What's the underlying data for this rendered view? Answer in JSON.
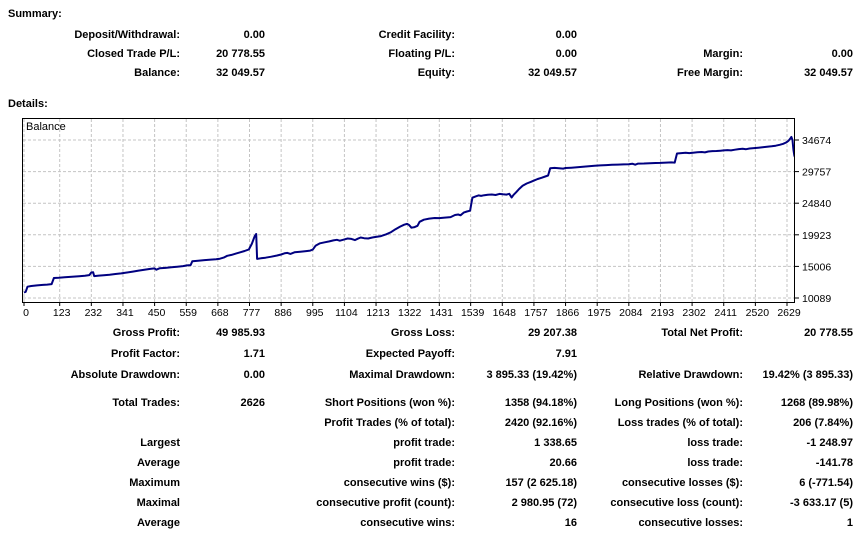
{
  "summary": {
    "title": "Summary:",
    "rows": [
      [
        "Deposit/Withdrawal:",
        "0.00",
        "Credit Facility:",
        "0.00",
        "",
        ""
      ],
      [
        "Closed Trade P/L:",
        "20 778.55",
        "Floating P/L:",
        "0.00",
        "Margin:",
        "0.00"
      ],
      [
        "Balance:",
        "32 049.57",
        "Equity:",
        "32 049.57",
        "Free Margin:",
        "32 049.57"
      ]
    ]
  },
  "details": {
    "title": "Details:",
    "group1": [
      [
        "Gross Profit:",
        "49 985.93",
        "Gross Loss:",
        "29 207.38",
        "Total Net Profit:",
        "20 778.55"
      ],
      [
        "Profit Factor:",
        "1.71",
        "Expected Payoff:",
        "7.91",
        "",
        ""
      ],
      [
        "Absolute Drawdown:",
        "0.00",
        "Maximal Drawdown:",
        "3 895.33 (19.42%)",
        "Relative Drawdown:",
        "19.42% (3 895.33)"
      ]
    ],
    "group2": [
      [
        "Total Trades:",
        "2626",
        "Short Positions (won %):",
        "1358 (94.18%)",
        "Long Positions (won %):",
        "1268 (89.98%)"
      ],
      [
        "",
        "",
        "Profit Trades (% of total):",
        "2420 (92.16%)",
        "Loss trades (% of total):",
        "206 (7.84%)"
      ],
      [
        "Largest",
        "",
        "profit trade:",
        "1 338.65",
        "loss trade:",
        "-1 248.97"
      ],
      [
        "Average",
        "",
        "profit trade:",
        "20.66",
        "loss trade:",
        "-141.78"
      ],
      [
        "Maximum",
        "",
        "consecutive wins ($):",
        "157 (2 625.18)",
        "consecutive losses ($):",
        "6 (-771.54)"
      ],
      [
        "Maximal",
        "",
        "consecutive profit (count):",
        "2 980.95 (72)",
        "consecutive loss (count):",
        "-3 633.17 (5)"
      ],
      [
        "Average",
        "",
        "consecutive wins:",
        "16",
        "consecutive losses:",
        "1"
      ]
    ]
  },
  "chart_data": {
    "type": "line",
    "title": "Balance",
    "legend_position": "top-left-inside",
    "grid": "dashed",
    "line_color": "#000080",
    "grid_color": "#c4c4c4",
    "x_ticks": [
      0,
      123,
      232,
      341,
      450,
      559,
      668,
      777,
      886,
      995,
      1104,
      1213,
      1322,
      1431,
      1539,
      1648,
      1757,
      1866,
      1975,
      2084,
      2193,
      2302,
      2411,
      2520,
      2629
    ],
    "y_ticks": [
      10089,
      15006,
      19923,
      24840,
      29757,
      34674
    ],
    "x_range": [
      0,
      2656
    ],
    "y_range": [
      10089,
      34674
    ],
    "series": [
      {
        "name": "Balance",
        "points": [
          [
            0,
            10950
          ],
          [
            6,
            11050
          ],
          [
            12,
            11850
          ],
          [
            25,
            11950
          ],
          [
            45,
            12050
          ],
          [
            65,
            12120
          ],
          [
            80,
            12180
          ],
          [
            95,
            12250
          ],
          [
            103,
            13200
          ],
          [
            120,
            13250
          ],
          [
            140,
            13320
          ],
          [
            165,
            13400
          ],
          [
            190,
            13480
          ],
          [
            210,
            13550
          ],
          [
            225,
            13650
          ],
          [
            232,
            14050
          ],
          [
            238,
            14100
          ],
          [
            242,
            13500
          ],
          [
            258,
            13570
          ],
          [
            275,
            13640
          ],
          [
            295,
            13720
          ],
          [
            315,
            13820
          ],
          [
            335,
            13920
          ],
          [
            355,
            14050
          ],
          [
            375,
            14200
          ],
          [
            395,
            14350
          ],
          [
            415,
            14480
          ],
          [
            435,
            14620
          ],
          [
            450,
            14700
          ],
          [
            456,
            14500
          ],
          [
            468,
            14720
          ],
          [
            488,
            14780
          ],
          [
            508,
            14870
          ],
          [
            528,
            14960
          ],
          [
            548,
            15060
          ],
          [
            562,
            15160
          ],
          [
            574,
            15210
          ],
          [
            580,
            15800
          ],
          [
            600,
            15900
          ],
          [
            622,
            15980
          ],
          [
            644,
            16060
          ],
          [
            662,
            16120
          ],
          [
            675,
            16200
          ],
          [
            688,
            16380
          ],
          [
            700,
            16650
          ],
          [
            715,
            16800
          ],
          [
            730,
            17000
          ],
          [
            745,
            17200
          ],
          [
            760,
            17400
          ],
          [
            775,
            17650
          ],
          [
            785,
            18500
          ],
          [
            795,
            19700
          ],
          [
            800,
            20050
          ],
          [
            803,
            16170
          ],
          [
            816,
            16260
          ],
          [
            832,
            16360
          ],
          [
            852,
            16520
          ],
          [
            872,
            16700
          ],
          [
            886,
            16850
          ],
          [
            898,
            17050
          ],
          [
            908,
            17100
          ],
          [
            918,
            16950
          ],
          [
            932,
            17200
          ],
          [
            952,
            17290
          ],
          [
            972,
            17380
          ],
          [
            986,
            17470
          ],
          [
            995,
            17620
          ],
          [
            1005,
            18250
          ],
          [
            1020,
            18600
          ],
          [
            1036,
            18760
          ],
          [
            1052,
            18900
          ],
          [
            1066,
            19050
          ],
          [
            1078,
            19150
          ],
          [
            1088,
            19000
          ],
          [
            1104,
            19200
          ],
          [
            1115,
            19350
          ],
          [
            1128,
            19280
          ],
          [
            1140,
            19100
          ],
          [
            1150,
            19320
          ],
          [
            1160,
            19500
          ],
          [
            1172,
            19400
          ],
          [
            1186,
            19350
          ],
          [
            1200,
            19500
          ],
          [
            1213,
            19600
          ],
          [
            1230,
            19720
          ],
          [
            1248,
            20000
          ],
          [
            1265,
            20350
          ],
          [
            1280,
            20800
          ],
          [
            1296,
            21200
          ],
          [
            1310,
            21500
          ],
          [
            1320,
            21620
          ],
          [
            1327,
            21450
          ],
          [
            1335,
            21020
          ],
          [
            1346,
            21120
          ],
          [
            1356,
            21320
          ],
          [
            1363,
            21950
          ],
          [
            1378,
            22280
          ],
          [
            1396,
            22450
          ],
          [
            1415,
            22530
          ],
          [
            1431,
            22520
          ],
          [
            1450,
            22600
          ],
          [
            1470,
            22680
          ],
          [
            1485,
            23000
          ],
          [
            1496,
            23080
          ],
          [
            1504,
            22960
          ],
          [
            1515,
            23380
          ],
          [
            1526,
            23550
          ],
          [
            1537,
            23680
          ],
          [
            1545,
            25700
          ],
          [
            1556,
            25900
          ],
          [
            1566,
            26050
          ],
          [
            1575,
            25980
          ],
          [
            1586,
            26080
          ],
          [
            1598,
            26160
          ],
          [
            1612,
            26200
          ],
          [
            1625,
            26120
          ],
          [
            1638,
            26280
          ],
          [
            1650,
            26230
          ],
          [
            1662,
            26180
          ],
          [
            1672,
            26300
          ],
          [
            1680,
            25720
          ],
          [
            1687,
            26150
          ],
          [
            1696,
            26550
          ],
          [
            1706,
            27050
          ],
          [
            1718,
            27550
          ],
          [
            1732,
            27900
          ],
          [
            1746,
            28150
          ],
          [
            1757,
            28350
          ],
          [
            1770,
            28600
          ],
          [
            1783,
            28800
          ],
          [
            1796,
            29000
          ],
          [
            1806,
            29150
          ],
          [
            1813,
            30280
          ],
          [
            1828,
            30330
          ],
          [
            1843,
            30290
          ],
          [
            1858,
            30230
          ],
          [
            1866,
            30320
          ],
          [
            1886,
            30370
          ],
          [
            1906,
            30420
          ],
          [
            1926,
            30500
          ],
          [
            1946,
            30600
          ],
          [
            1966,
            30680
          ],
          [
            1986,
            30720
          ],
          [
            2006,
            30770
          ],
          [
            2026,
            30810
          ],
          [
            2046,
            30850
          ],
          [
            2066,
            30880
          ],
          [
            2084,
            30910
          ],
          [
            2096,
            30990
          ],
          [
            2106,
            30830
          ],
          [
            2116,
            31000
          ],
          [
            2136,
            31020
          ],
          [
            2156,
            31060
          ],
          [
            2176,
            31090
          ],
          [
            2193,
            31110
          ],
          [
            2212,
            31150
          ],
          [
            2230,
            31190
          ],
          [
            2242,
            31150
          ],
          [
            2250,
            32570
          ],
          [
            2265,
            32640
          ],
          [
            2280,
            32680
          ],
          [
            2292,
            32630
          ],
          [
            2305,
            32690
          ],
          [
            2320,
            32760
          ],
          [
            2335,
            32800
          ],
          [
            2346,
            32750
          ],
          [
            2358,
            32890
          ],
          [
            2372,
            32940
          ],
          [
            2386,
            32970
          ],
          [
            2400,
            33010
          ],
          [
            2411,
            33060
          ],
          [
            2424,
            33100
          ],
          [
            2436,
            33050
          ],
          [
            2450,
            33160
          ],
          [
            2463,
            33260
          ],
          [
            2476,
            33310
          ],
          [
            2488,
            33250
          ],
          [
            2500,
            33350
          ],
          [
            2515,
            33410
          ],
          [
            2530,
            33470
          ],
          [
            2545,
            33540
          ],
          [
            2560,
            33610
          ],
          [
            2576,
            33690
          ],
          [
            2590,
            33790
          ],
          [
            2604,
            33920
          ],
          [
            2616,
            34080
          ],
          [
            2626,
            34280
          ],
          [
            2634,
            34550
          ],
          [
            2641,
            34950
          ],
          [
            2644,
            35150
          ],
          [
            2648,
            34650
          ],
          [
            2651,
            33200
          ],
          [
            2654,
            32300
          ],
          [
            2656,
            32050
          ]
        ]
      }
    ]
  }
}
